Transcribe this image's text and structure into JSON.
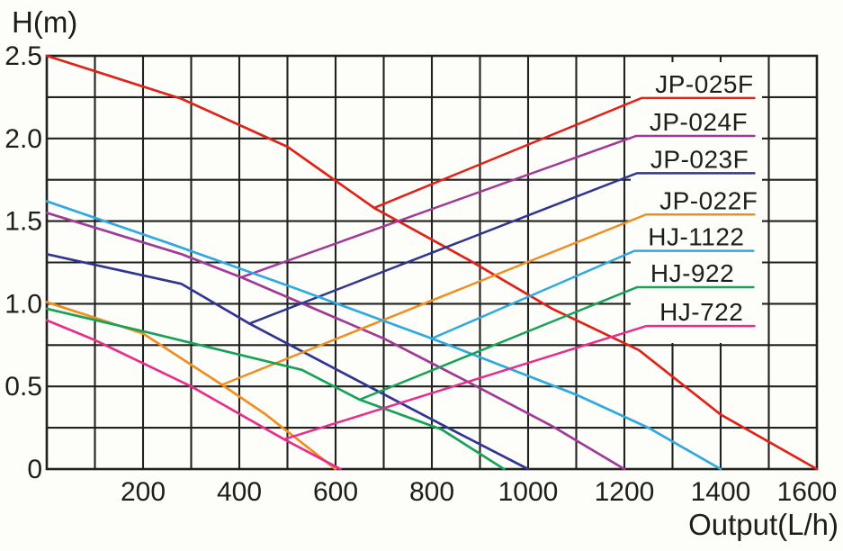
{
  "chart_data": {
    "type": "line",
    "title": "",
    "xlabel": "Output(L/h)",
    "ylabel": "H(m)",
    "xlim": [
      0,
      1600
    ],
    "ylim": [
      0,
      2.5
    ],
    "x_minor_step": 100,
    "y_minor_step": 0.25,
    "grid": true,
    "legend_position": "inside-right",
    "colors": {
      "grid": "#21211f",
      "text": "#1d1d1b",
      "background": "#fdfdfa"
    },
    "x_ticks": [
      200,
      400,
      600,
      800,
      1000,
      1200,
      1400,
      1600
    ],
    "y_ticks": [
      {
        "value": 2.5,
        "label": "2.5"
      },
      {
        "value": 2.0,
        "label": "2.0"
      },
      {
        "value": 1.5,
        "label": "1.5"
      },
      {
        "value": 1.0,
        "label": "1.0"
      },
      {
        "value": 0.5,
        "label": "0.5"
      },
      {
        "value": 0,
        "label": "0"
      }
    ],
    "series": [
      {
        "name": "JP-025F",
        "color": "#df2318",
        "points": [
          [
            0,
            2.5
          ],
          [
            280,
            2.24
          ],
          [
            500,
            1.95
          ],
          [
            680,
            1.58
          ],
          [
            880,
            1.26
          ],
          [
            1050,
            0.97
          ],
          [
            1230,
            0.72
          ],
          [
            1400,
            0.33
          ],
          [
            1600,
            0
          ]
        ],
        "leader": {
          "start": [
            680,
            1.58
          ],
          "elbow": [
            1236,
            2.245
          ],
          "end": [
            1470,
            2.245
          ]
        }
      },
      {
        "name": "JP-024F",
        "color": "#a13a96",
        "points": [
          [
            0,
            1.55
          ],
          [
            280,
            1.3
          ],
          [
            404,
            1.16
          ],
          [
            700,
            0.79
          ],
          [
            880,
            0.52
          ],
          [
            1050,
            0.26
          ],
          [
            1200,
            0
          ]
        ],
        "leader": {
          "start": [
            404,
            1.16
          ],
          "elbow": [
            1224,
            2.015
          ],
          "end": [
            1470,
            2.015
          ]
        }
      },
      {
        "name": "JP-023F",
        "color": "#2f3591",
        "points": [
          [
            0,
            1.3
          ],
          [
            280,
            1.12
          ],
          [
            421,
            0.88
          ],
          [
            610,
            0.59
          ],
          [
            820,
            0.27
          ],
          [
            1000,
            0
          ]
        ],
        "leader": {
          "start": [
            421,
            0.88
          ],
          "elbow": [
            1226,
            1.79
          ],
          "end": [
            1470,
            1.79
          ]
        }
      },
      {
        "name": "JP-022F",
        "color": "#f08e20",
        "points": [
          [
            0,
            1.01
          ],
          [
            200,
            0.82
          ],
          [
            364,
            0.51
          ],
          [
            455,
            0.33
          ],
          [
            600,
            0
          ]
        ],
        "leader": {
          "start": [
            364,
            0.51
          ],
          "elbow": [
            1245,
            1.54
          ],
          "end": [
            1470,
            1.54
          ]
        }
      },
      {
        "name": "HJ-1122",
        "color": "#2fa9e0",
        "points": [
          [
            0,
            1.62
          ],
          [
            260,
            1.36
          ],
          [
            510,
            1.1
          ],
          [
            800,
            0.79
          ],
          [
            1100,
            0.45
          ],
          [
            1250,
            0.25
          ],
          [
            1400,
            0
          ]
        ],
        "leader": {
          "start": [
            800,
            0.79
          ],
          "elbow": [
            1221,
            1.32
          ],
          "end": [
            1468,
            1.32
          ]
        }
      },
      {
        "name": "HJ-922",
        "color": "#17a258",
        "points": [
          [
            0,
            0.97
          ],
          [
            220,
            0.82
          ],
          [
            530,
            0.6
          ],
          [
            650,
            0.42
          ],
          [
            820,
            0.24
          ],
          [
            950,
            0
          ]
        ],
        "leader": {
          "start": [
            650,
            0.42
          ],
          "elbow": [
            1226,
            1.1
          ],
          "end": [
            1468,
            1.1
          ]
        }
      },
      {
        "name": "HJ-722",
        "color": "#e82e8a",
        "points": [
          [
            0,
            0.9
          ],
          [
            100,
            0.78
          ],
          [
            300,
            0.5
          ],
          [
            493,
            0.18
          ],
          [
            610,
            0
          ]
        ],
        "leader": {
          "start": [
            493,
            0.18
          ],
          "elbow": [
            1245,
            0.865
          ],
          "end": [
            1470,
            0.865
          ]
        }
      }
    ],
    "legend": {
      "labels": [
        "JP-025F",
        "JP-024F",
        "JP-023F",
        "JP-022F",
        "HJ-1122",
        "HJ-922",
        "HJ-722"
      ]
    }
  }
}
